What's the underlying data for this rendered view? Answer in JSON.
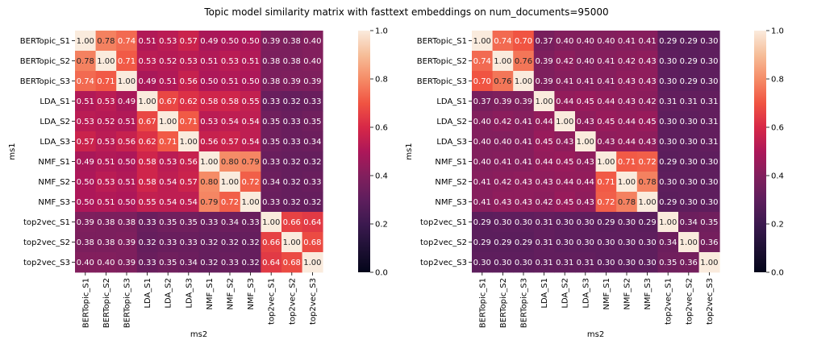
{
  "figure": {
    "title": "Topic model similarity matrix with fasttext embeddings on  num_documents=95000"
  },
  "chart_data": [
    {
      "type": "heatmap",
      "xlabel": "ms2",
      "ylabel": "ms1",
      "labels": [
        "BERTopic_S1",
        "BERTopic_S2",
        "BERTopic_S3",
        "LDA_S1",
        "LDA_S2",
        "LDA_S3",
        "NMF_S1",
        "NMF_S2",
        "NMF_S3",
        "top2vec_S1",
        "top2vec_S2",
        "top2vec_S3"
      ],
      "colorbar": {
        "min": 0.0,
        "max": 1.0,
        "ticks": [
          "0.0",
          "0.2",
          "0.4",
          "0.6",
          "0.8",
          "1.0"
        ],
        "colormap": "rocket"
      },
      "values": [
        [
          1.0,
          0.78,
          0.74,
          0.51,
          0.53,
          0.57,
          0.49,
          0.5,
          0.5,
          0.39,
          0.38,
          0.4
        ],
        [
          0.78,
          1.0,
          0.71,
          0.53,
          0.52,
          0.53,
          0.51,
          0.53,
          0.51,
          0.38,
          0.38,
          0.4
        ],
        [
          0.74,
          0.71,
          1.0,
          0.49,
          0.51,
          0.56,
          0.5,
          0.51,
          0.5,
          0.38,
          0.39,
          0.39
        ],
        [
          0.51,
          0.53,
          0.49,
          1.0,
          0.67,
          0.62,
          0.58,
          0.58,
          0.55,
          0.33,
          0.32,
          0.33
        ],
        [
          0.53,
          0.52,
          0.51,
          0.67,
          1.0,
          0.71,
          0.53,
          0.54,
          0.54,
          0.35,
          0.33,
          0.35
        ],
        [
          0.57,
          0.53,
          0.56,
          0.62,
          0.71,
          1.0,
          0.56,
          0.57,
          0.54,
          0.35,
          0.33,
          0.34
        ],
        [
          0.49,
          0.51,
          0.5,
          0.58,
          0.53,
          0.56,
          1.0,
          0.8,
          0.79,
          0.33,
          0.32,
          0.32
        ],
        [
          0.5,
          0.53,
          0.51,
          0.58,
          0.54,
          0.57,
          0.8,
          1.0,
          0.72,
          0.34,
          0.32,
          0.33
        ],
        [
          0.5,
          0.51,
          0.5,
          0.55,
          0.54,
          0.54,
          0.79,
          0.72,
          1.0,
          0.33,
          0.32,
          0.32
        ],
        [
          0.39,
          0.38,
          0.38,
          0.33,
          0.35,
          0.35,
          0.33,
          0.34,
          0.33,
          1.0,
          0.66,
          0.64
        ],
        [
          0.38,
          0.38,
          0.39,
          0.32,
          0.33,
          0.33,
          0.32,
          0.32,
          0.32,
          0.66,
          1.0,
          0.68
        ],
        [
          0.4,
          0.4,
          0.39,
          0.33,
          0.35,
          0.34,
          0.32,
          0.33,
          0.32,
          0.64,
          0.68,
          1.0
        ]
      ]
    },
    {
      "type": "heatmap",
      "xlabel": "ms2",
      "ylabel": "ms1",
      "labels": [
        "BERTopic_S1",
        "BERTopic_S2",
        "BERTopic_S3",
        "LDA_S1",
        "LDA_S2",
        "LDA_S3",
        "NMF_S1",
        "NMF_S2",
        "NMF_S3",
        "top2vec_S1",
        "top2vec_S2",
        "top2vec_S3"
      ],
      "colorbar": {
        "min": 0.0,
        "max": 1.0,
        "ticks": [
          "0.0",
          "0.2",
          "0.4",
          "0.6",
          "0.8",
          "1.0"
        ],
        "colormap": "rocket"
      },
      "values": [
        [
          1.0,
          0.74,
          0.7,
          0.37,
          0.4,
          0.4,
          0.4,
          0.41,
          0.41,
          0.29,
          0.29,
          0.3
        ],
        [
          0.74,
          1.0,
          0.76,
          0.39,
          0.42,
          0.4,
          0.41,
          0.42,
          0.43,
          0.3,
          0.29,
          0.3
        ],
        [
          0.7,
          0.76,
          1.0,
          0.39,
          0.41,
          0.41,
          0.41,
          0.43,
          0.43,
          0.3,
          0.29,
          0.3
        ],
        [
          0.37,
          0.39,
          0.39,
          1.0,
          0.44,
          0.45,
          0.44,
          0.43,
          0.42,
          0.31,
          0.31,
          0.31
        ],
        [
          0.4,
          0.42,
          0.41,
          0.44,
          1.0,
          0.43,
          0.45,
          0.44,
          0.45,
          0.3,
          0.3,
          0.31
        ],
        [
          0.4,
          0.4,
          0.41,
          0.45,
          0.43,
          1.0,
          0.43,
          0.44,
          0.43,
          0.3,
          0.3,
          0.31
        ],
        [
          0.4,
          0.41,
          0.41,
          0.44,
          0.45,
          0.43,
          1.0,
          0.71,
          0.72,
          0.29,
          0.3,
          0.3
        ],
        [
          0.41,
          0.42,
          0.43,
          0.43,
          0.44,
          0.44,
          0.71,
          1.0,
          0.78,
          0.3,
          0.3,
          0.3
        ],
        [
          0.41,
          0.43,
          0.43,
          0.42,
          0.45,
          0.43,
          0.72,
          0.78,
          1.0,
          0.29,
          0.3,
          0.3
        ],
        [
          0.29,
          0.3,
          0.3,
          0.31,
          0.3,
          0.3,
          0.29,
          0.3,
          0.29,
          1.0,
          0.34,
          0.35
        ],
        [
          0.29,
          0.29,
          0.29,
          0.31,
          0.3,
          0.3,
          0.3,
          0.3,
          0.3,
          0.34,
          1.0,
          0.36
        ],
        [
          0.3,
          0.3,
          0.3,
          0.31,
          0.31,
          0.31,
          0.3,
          0.3,
          0.3,
          0.35,
          0.36,
          1.0
        ]
      ]
    }
  ]
}
